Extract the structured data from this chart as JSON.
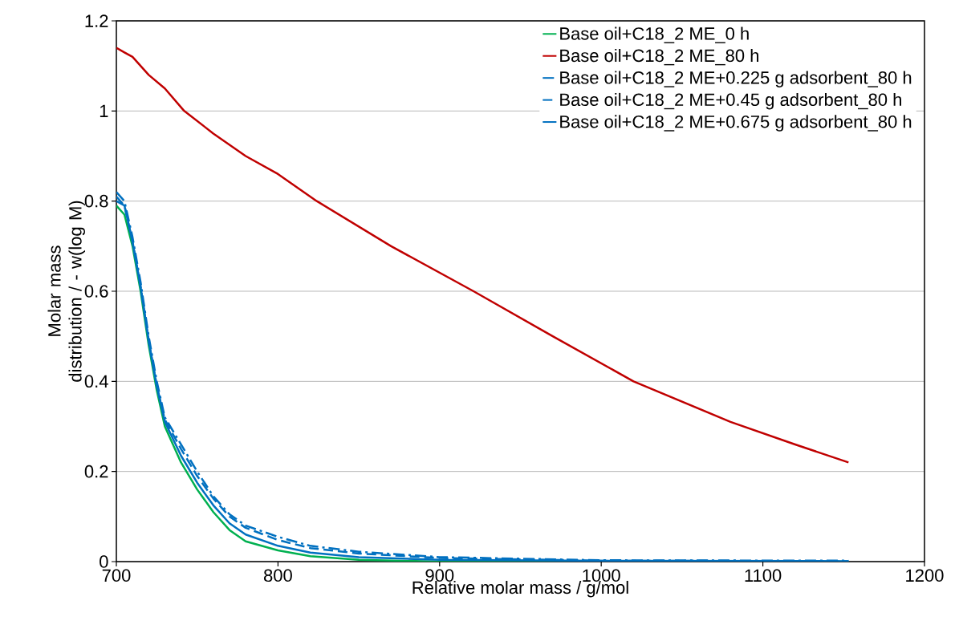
{
  "chart_data": {
    "type": "line",
    "xlabel": "Relative molar mass / g/mol",
    "ylabel": "Molar mass distribution / - w(log M)",
    "xlim": [
      700,
      1200
    ],
    "ylim": [
      0,
      1.2
    ],
    "xticks": [
      700,
      800,
      900,
      1000,
      1100,
      1200
    ],
    "yticks": [
      0,
      0.2,
      0.4,
      0.6,
      0.8,
      1,
      1.2
    ],
    "grid": "y",
    "legend": "top right",
    "marker": "none",
    "series": [
      {
        "name": "Base oil+C18_2 ME_0 h",
        "color": "#00b050",
        "line_style": "solid",
        "x": [
          700,
          705,
          710,
          715,
          720,
          725,
          730,
          740,
          750,
          760,
          770,
          780,
          800,
          820,
          850,
          900,
          1000,
          1153
        ],
        "values": [
          0.79,
          0.77,
          0.7,
          0.6,
          0.48,
          0.38,
          0.3,
          0.22,
          0.16,
          0.11,
          0.07,
          0.045,
          0.025,
          0.012,
          0.004,
          0,
          0,
          0
        ]
      },
      {
        "name": "Base oil+C18_2 ME_80 h",
        "color": "#c00000",
        "line_style": "solid",
        "x": [
          700,
          705,
          710,
          720,
          730,
          742,
          760,
          780,
          800,
          824,
          870,
          921,
          970,
          1020,
          1080,
          1120,
          1153
        ],
        "values": [
          1.14,
          1.13,
          1.12,
          1.08,
          1.05,
          1.0,
          0.95,
          0.9,
          0.86,
          0.8,
          0.7,
          0.6,
          0.5,
          0.4,
          0.31,
          0.26,
          0.22
        ]
      },
      {
        "name": "Base oil+C18_2 ME+0.225 g adsorbent_80 h",
        "color": "#0070c0",
        "line_style": "dashdot",
        "x": [
          700,
          705,
          710,
          715,
          720,
          725,
          730,
          740,
          750,
          760,
          770,
          780,
          800,
          820,
          850,
          900,
          1000,
          1153
        ],
        "values": [
          0.82,
          0.8,
          0.72,
          0.62,
          0.5,
          0.4,
          0.32,
          0.26,
          0.2,
          0.145,
          0.105,
          0.08,
          0.055,
          0.035,
          0.022,
          0.01,
          0.003,
          0.002
        ]
      },
      {
        "name": "Base oil+C18_2 ME+0.45 g adsorbent_80 h",
        "color": "#0070c0",
        "line_style": "dashed",
        "x": [
          700,
          705,
          710,
          715,
          720,
          725,
          730,
          740,
          750,
          760,
          770,
          780,
          800,
          820,
          850,
          900,
          1000,
          1153
        ],
        "values": [
          0.81,
          0.79,
          0.71,
          0.61,
          0.49,
          0.39,
          0.315,
          0.25,
          0.19,
          0.14,
          0.1,
          0.075,
          0.048,
          0.03,
          0.018,
          0.008,
          0.002,
          0.001
        ]
      },
      {
        "name": "Base oil+C18_2 ME+0.675 g adsorbent_80 h",
        "color": "#0070c0",
        "line_style": "solid",
        "x": [
          700,
          705,
          710,
          715,
          720,
          725,
          730,
          740,
          750,
          760,
          770,
          780,
          800,
          820,
          850,
          900,
          1000,
          1153
        ],
        "values": [
          0.8,
          0.79,
          0.71,
          0.61,
          0.49,
          0.39,
          0.31,
          0.235,
          0.175,
          0.125,
          0.085,
          0.06,
          0.035,
          0.02,
          0.01,
          0.004,
          0.002,
          0.001
        ]
      }
    ]
  }
}
